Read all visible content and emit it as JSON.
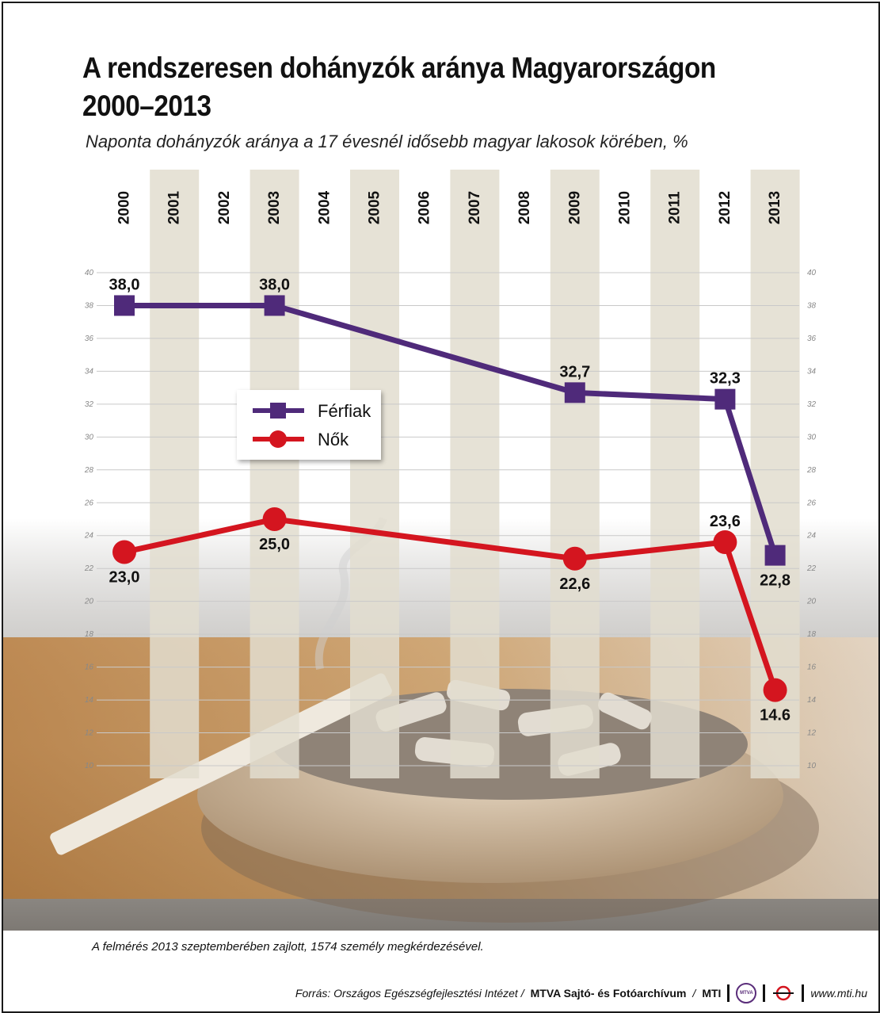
{
  "title_line1": "A rendszeresen dohányzók aránya Magyarországon",
  "title_line2": "2000–2013",
  "subtitle": "Naponta dohányzók aránya a 17 évesnél idősebb magyar lakosok körében, %",
  "note": "A felmérés 2013 szeptemberében zajlott, 1574 személy megkérdezésével.",
  "footer": {
    "source": "Forrás: Országos Egészségfejlesztési Intézet /",
    "org": "MTVA Sajtó- és Fotóarchívum",
    "org_sep": "/",
    "mti": "MTI",
    "logo_text": "MTVA",
    "url": "www.mti.hu"
  },
  "colors": {
    "men": "#4f2a7a",
    "women": "#d4151f",
    "stripe": "#e2ddcf"
  },
  "chart_data": {
    "type": "line",
    "title": "A rendszeresen dohányzók aránya Magyarországon 2000–2013",
    "subtitle": "Naponta dohányzók aránya a 17 évesnél idősebb magyar lakosok körében, %",
    "xlabel": "",
    "ylabel": "%",
    "categories": [
      "2000",
      "2001",
      "2002",
      "2003",
      "2004",
      "2005",
      "2006",
      "2007",
      "2008",
      "2009",
      "2010",
      "2011",
      "2012",
      "2013"
    ],
    "ylim": [
      10,
      40
    ],
    "yticks": [
      10,
      12,
      14,
      16,
      18,
      20,
      22,
      24,
      26,
      28,
      30,
      32,
      34,
      36,
      38,
      40
    ],
    "grid": true,
    "legend_position": "center-left",
    "series": [
      {
        "name": "Férfiak",
        "color": "#4f2a7a",
        "marker": "square",
        "points": [
          {
            "year": "2000",
            "value": 38.0,
            "label": "38,0"
          },
          {
            "year": "2003",
            "value": 38.0,
            "label": "38,0"
          },
          {
            "year": "2009",
            "value": 32.7,
            "label": "32,7"
          },
          {
            "year": "2012",
            "value": 32.3,
            "label": "32,3"
          },
          {
            "year": "2013",
            "value": 22.8,
            "label": "22,8"
          }
        ]
      },
      {
        "name": "Nők",
        "color": "#d4151f",
        "marker": "circle",
        "points": [
          {
            "year": "2000",
            "value": 23.0,
            "label": "23,0"
          },
          {
            "year": "2003",
            "value": 25.0,
            "label": "25,0"
          },
          {
            "year": "2009",
            "value": 22.6,
            "label": "22,6"
          },
          {
            "year": "2012",
            "value": 23.6,
            "label": "23,6"
          },
          {
            "year": "2013",
            "value": 14.6,
            "label": "14.6"
          }
        ]
      }
    ]
  }
}
